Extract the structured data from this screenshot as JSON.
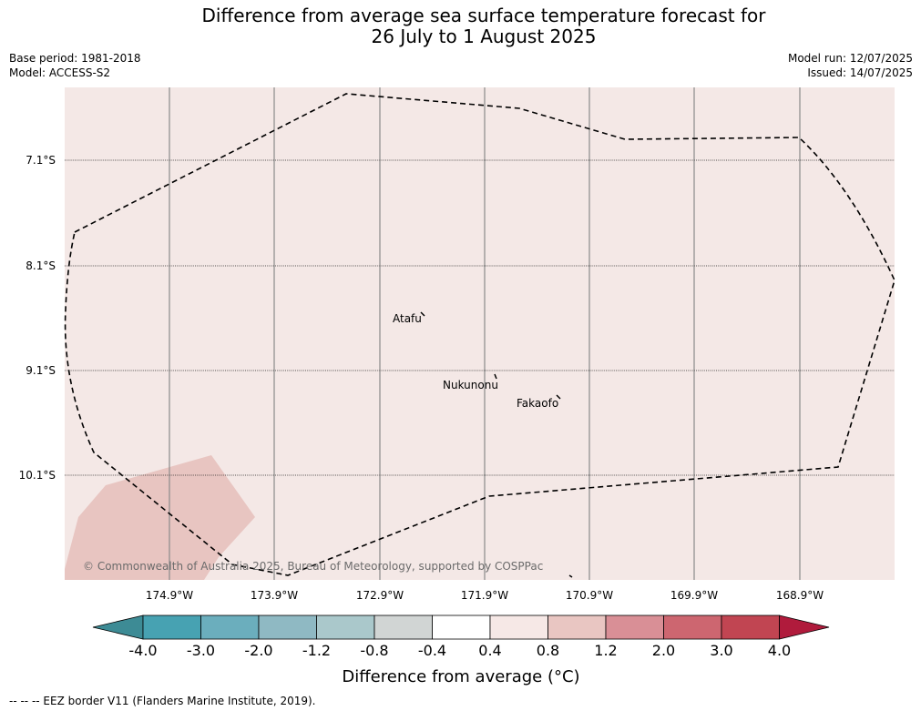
{
  "title": {
    "line1": "Difference from average sea surface temperature forecast for",
    "line2": "26 July to 1 August 2025"
  },
  "meta_left": {
    "base_period": "Base period: 1981-2018",
    "model": "Model: ACCESS-S2"
  },
  "meta_right": {
    "model_run": "Model run: 12/07/2025",
    "issued": "Issued: 14/07/2025"
  },
  "map": {
    "background_color": "#f4e8e6",
    "anomaly_patch_color": "#e8c5c1",
    "lat_labels": [
      "7.1°S",
      "8.1°S",
      "9.1°S",
      "10.1°S"
    ],
    "lon_labels": [
      "174.9°W",
      "173.9°W",
      "172.9°W",
      "171.9°W",
      "170.9°W",
      "169.9°W",
      "168.9°W"
    ],
    "places": [
      {
        "name": "Atafu",
        "lon": -172.48,
        "lat": -8.55
      },
      {
        "name": "Nukunonu",
        "lon": -171.8,
        "lat": -9.17
      },
      {
        "name": "Fakaofo",
        "lon": -171.2,
        "lat": -9.37
      }
    ],
    "copyright": "© Commonwealth of Australia 2025, Bureau of Meteorology, supported by COSPPac"
  },
  "colorbar": {
    "ticks": [
      "-4.0",
      "-3.0",
      "-2.0",
      "-1.2",
      "-0.8",
      "-0.4",
      "0.4",
      "0.8",
      "1.2",
      "2.0",
      "3.0",
      "4.0"
    ],
    "colors": [
      "#3d8b95",
      "#47a2b2",
      "#6baebd",
      "#8fb9c3",
      "#aac8cb",
      "#d1d5d4",
      "#ffffff",
      "#f6e8e6",
      "#e9c6c2",
      "#d98f96",
      "#cd6670",
      "#c14552",
      "#b01b3c"
    ],
    "title": "Difference from average (°C)"
  },
  "footer": "--  --  -- EEZ border V11 (Flanders Marine Institute, 2019)."
}
